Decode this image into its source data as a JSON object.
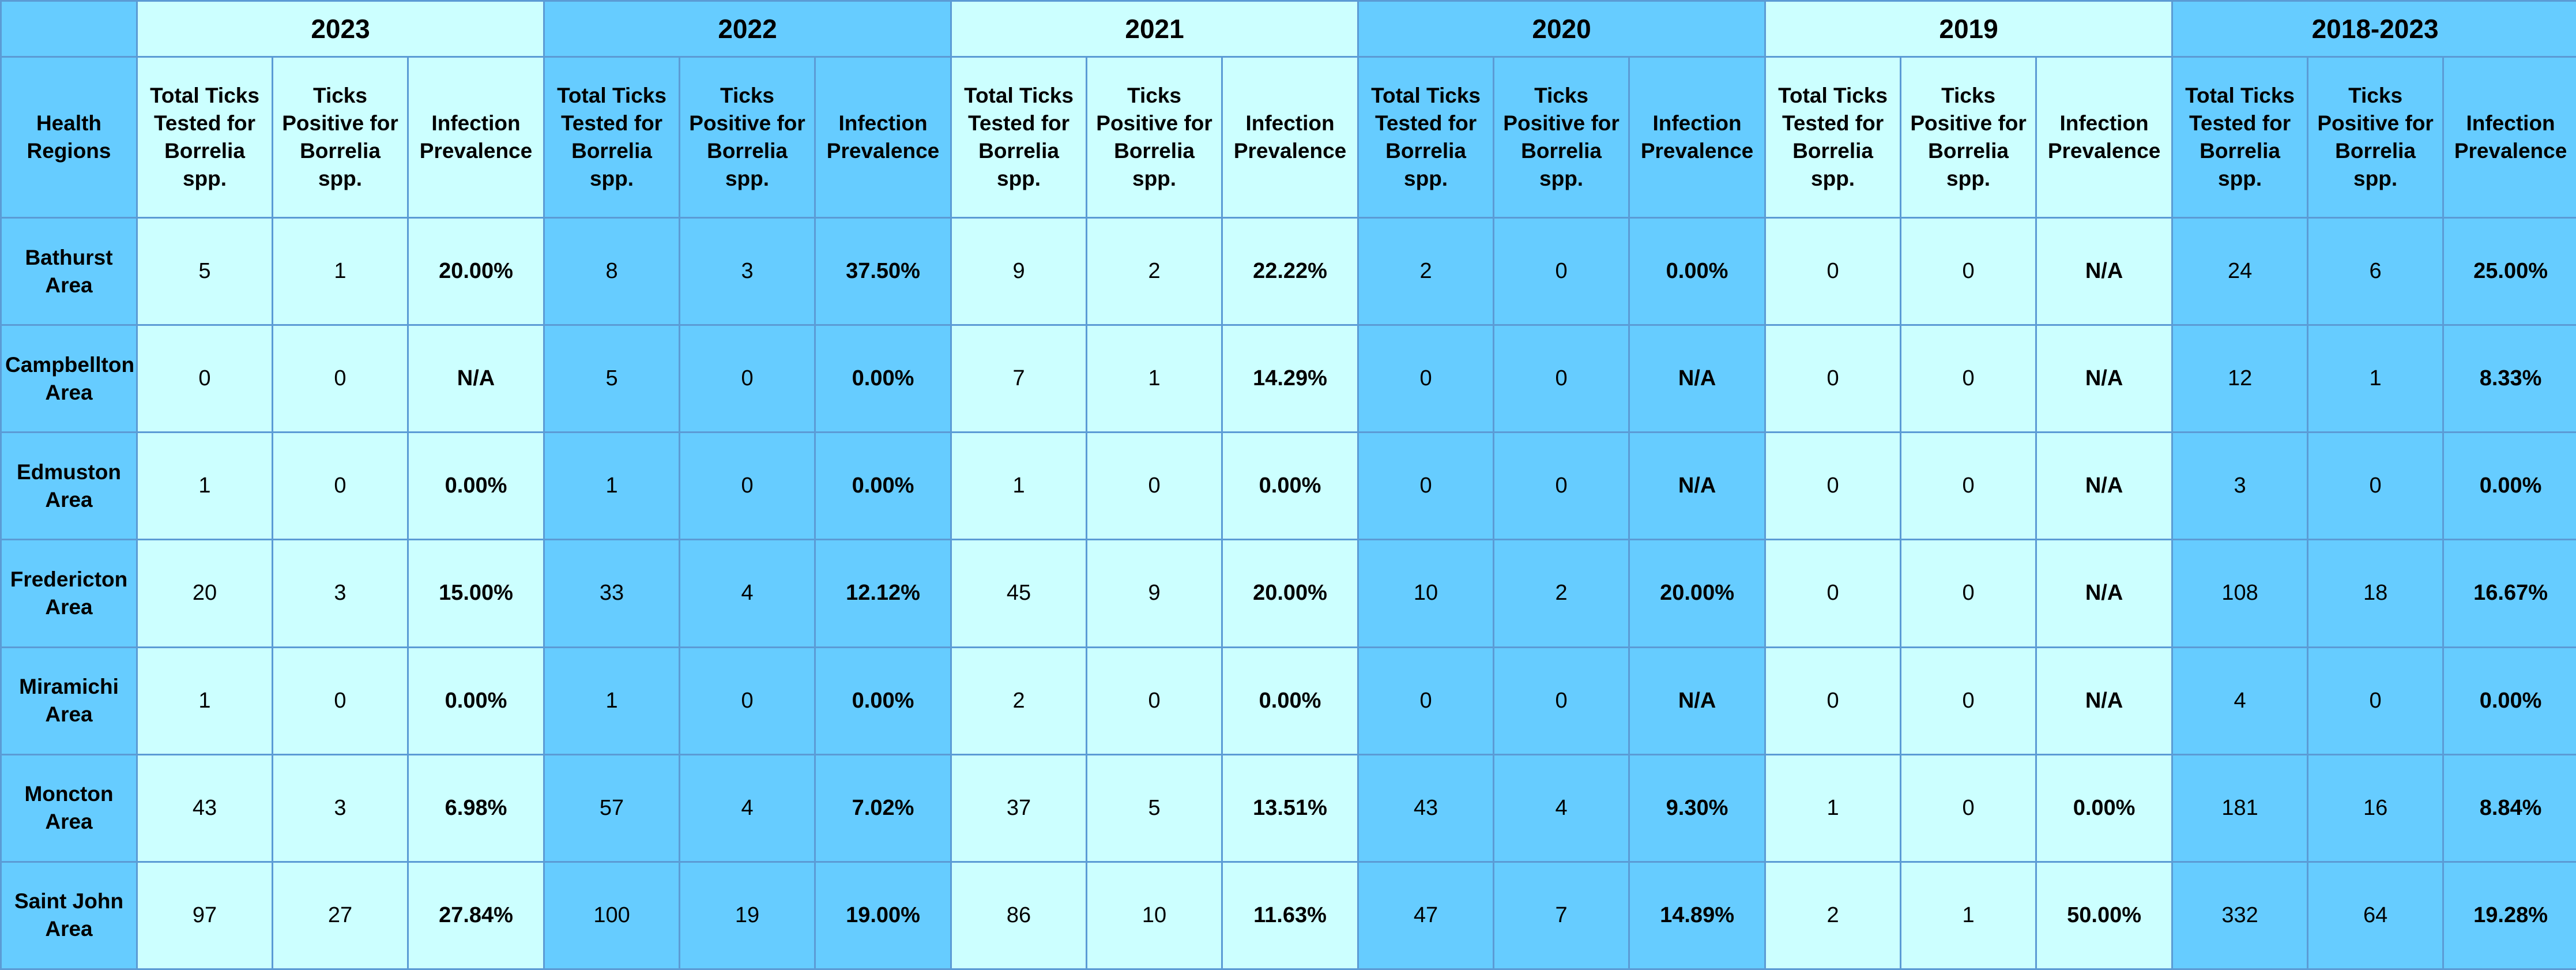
{
  "table": {
    "region_header": "Health Regions",
    "column_labels": {
      "tested": "Total Ticks Tested for Borrelia spp.",
      "positive": "Ticks Positive for Borrelia spp.",
      "prevalence": "Infection Prevalence"
    },
    "colors": {
      "light": "#ccffff",
      "dark": "#66ccff",
      "border": "#5b9bd5"
    },
    "years": [
      "2023",
      "2022",
      "2021",
      "2020",
      "2019",
      "2018-2023"
    ],
    "rows": [
      {
        "region": "Bathurst Area",
        "values": [
          [
            "5",
            "1",
            "20.00%"
          ],
          [
            "8",
            "3",
            "37.50%"
          ],
          [
            "9",
            "2",
            "22.22%"
          ],
          [
            "2",
            "0",
            "0.00%"
          ],
          [
            "0",
            "0",
            "N/A"
          ],
          [
            "24",
            "6",
            "25.00%"
          ]
        ]
      },
      {
        "region": "Campbellton Area",
        "values": [
          [
            "0",
            "0",
            "N/A"
          ],
          [
            "5",
            "0",
            "0.00%"
          ],
          [
            "7",
            "1",
            "14.29%"
          ],
          [
            "0",
            "0",
            "N/A"
          ],
          [
            "0",
            "0",
            "N/A"
          ],
          [
            "12",
            "1",
            "8.33%"
          ]
        ]
      },
      {
        "region": "Edmuston Area",
        "values": [
          [
            "1",
            "0",
            "0.00%"
          ],
          [
            "1",
            "0",
            "0.00%"
          ],
          [
            "1",
            "0",
            "0.00%"
          ],
          [
            "0",
            "0",
            "N/A"
          ],
          [
            "0",
            "0",
            "N/A"
          ],
          [
            "3",
            "0",
            "0.00%"
          ]
        ]
      },
      {
        "region": "Fredericton Area",
        "values": [
          [
            "20",
            "3",
            "15.00%"
          ],
          [
            "33",
            "4",
            "12.12%"
          ],
          [
            "45",
            "9",
            "20.00%"
          ],
          [
            "10",
            "2",
            "20.00%"
          ],
          [
            "0",
            "0",
            "N/A"
          ],
          [
            "108",
            "18",
            "16.67%"
          ]
        ]
      },
      {
        "region": "Miramichi Area",
        "values": [
          [
            "1",
            "0",
            "0.00%"
          ],
          [
            "1",
            "0",
            "0.00%"
          ],
          [
            "2",
            "0",
            "0.00%"
          ],
          [
            "0",
            "0",
            "N/A"
          ],
          [
            "0",
            "0",
            "N/A"
          ],
          [
            "4",
            "0",
            "0.00%"
          ]
        ]
      },
      {
        "region": "Moncton Area",
        "values": [
          [
            "43",
            "3",
            "6.98%"
          ],
          [
            "57",
            "4",
            "7.02%"
          ],
          [
            "37",
            "5",
            "13.51%"
          ],
          [
            "43",
            "4",
            "9.30%"
          ],
          [
            "1",
            "0",
            "0.00%"
          ],
          [
            "181",
            "16",
            "8.84%"
          ]
        ]
      },
      {
        "region": "Saint John Area",
        "values": [
          [
            "97",
            "27",
            "27.84%"
          ],
          [
            "100",
            "19",
            "19.00%"
          ],
          [
            "86",
            "10",
            "11.63%"
          ],
          [
            "47",
            "7",
            "14.89%"
          ],
          [
            "2",
            "1",
            "50.00%"
          ],
          [
            "332",
            "64",
            "19.28%"
          ]
        ]
      }
    ]
  }
}
